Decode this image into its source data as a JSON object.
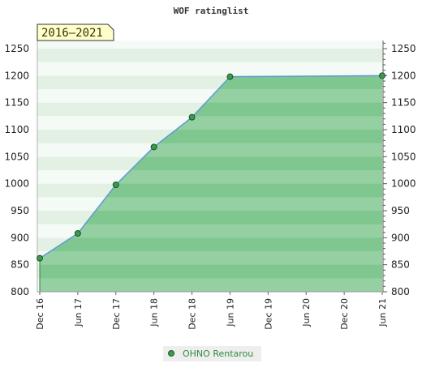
{
  "chart_data": {
    "type": "area",
    "title": "WOF ratinglist",
    "badge": "2016–2021",
    "xlabel": "",
    "ylabel": "",
    "x_ticks": [
      "Dec 16",
      "Jun 17",
      "Dec 17",
      "Jun 18",
      "Dec 18",
      "Jun 19",
      "Dec 19",
      "Jun 20",
      "Dec 20",
      "Jun 21"
    ],
    "y_ticks": [
      800,
      850,
      900,
      950,
      1000,
      1050,
      1100,
      1150,
      1200,
      1250
    ],
    "ylim": [
      800,
      1265
    ],
    "grid": true,
    "legend_position": "bottom-center",
    "series": [
      {
        "name": "OHNO Rentarou",
        "x": [
          "Dec 16",
          "Jun 17",
          "Dec 17",
          "Jun 18",
          "Dec 18",
          "Jun 19",
          "Jun 21"
        ],
        "values": [
          862,
          908,
          998,
          1068,
          1123,
          1198,
          1200
        ]
      }
    ]
  },
  "colors": {
    "area_fill": "#6fbf80",
    "line": "#5b9bd5",
    "marker": "#3a9a4a",
    "badge_bg": "#ffffcc",
    "legend_bg": "#eeeeee"
  }
}
